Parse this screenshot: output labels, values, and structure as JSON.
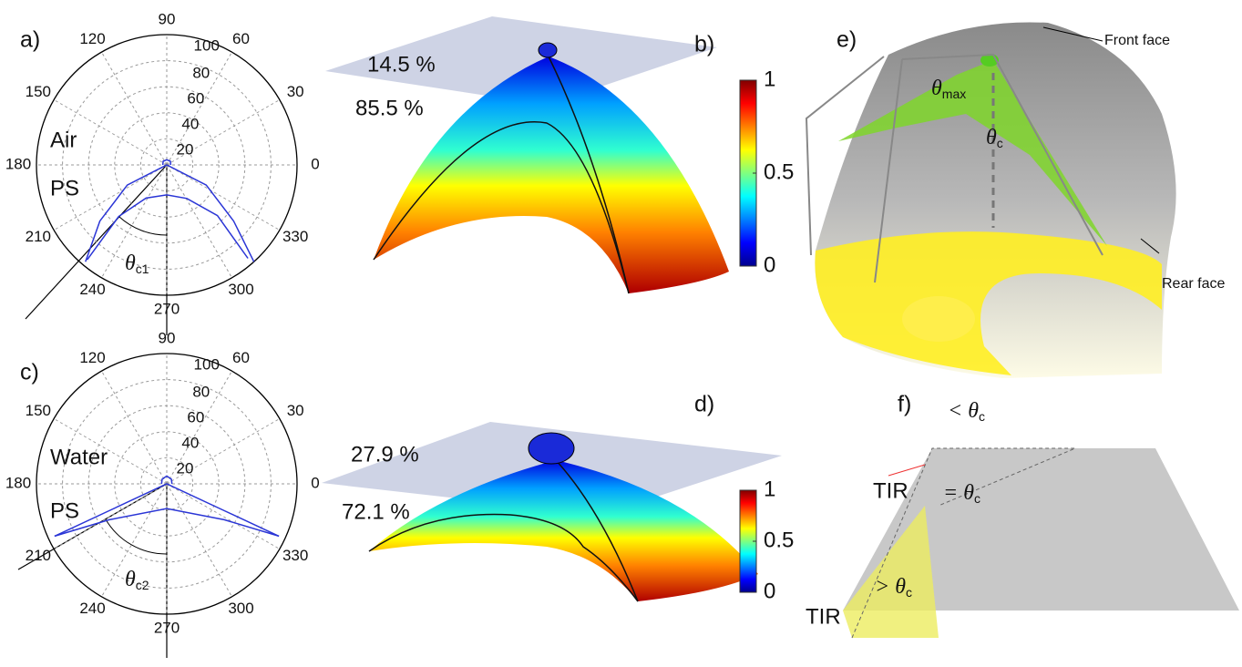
{
  "chart_data": [
    {
      "type": "polar",
      "label": "a)",
      "annotations": [
        "Air",
        "PS"
      ],
      "theta_label": {
        "main": "θ",
        "sub": "c1"
      },
      "rlim": [
        0,
        100
      ],
      "rticks": [
        20,
        40,
        60,
        80,
        100
      ],
      "thetaticks": [
        0,
        30,
        60,
        90,
        120,
        150,
        180,
        210,
        240,
        270,
        300,
        330
      ],
      "grid": true,
      "series": [
        {
          "color": "#2a35d6",
          "theta": [
            230,
            220,
            207,
            270,
            333,
            320,
            312
          ],
          "r": [
            97,
            67,
            34,
            0,
            34,
            67,
            100
          ]
        },
        {
          "color": "#2a35d6",
          "theta": [
            230,
            227,
            238,
            270,
            301,
            315,
            311
          ],
          "r": [
            95,
            54,
            30,
            23,
            30,
            55,
            95
          ]
        },
        {
          "color": "#2a35d6",
          "theta": [
            0,
            45,
            90,
            135,
            180
          ],
          "r": [
            3,
            4,
            4,
            4,
            3
          ]
        }
      ]
    },
    {
      "type": "surface",
      "label": "b)",
      "annotations": [
        "14.5 %",
        "85.5 %"
      ],
      "colorbar_lim": [
        0,
        1
      ],
      "colorbar_ticks": [
        0,
        0.5,
        1
      ]
    },
    {
      "type": "polar",
      "label": "c)",
      "annotations": [
        "Water",
        "PS"
      ],
      "theta_label": {
        "main": "θ",
        "sub": "c2"
      },
      "rlim": [
        0,
        100
      ],
      "rticks": [
        20,
        40,
        60,
        80,
        100
      ],
      "thetaticks": [
        0,
        30,
        60,
        90,
        120,
        150,
        180,
        210,
        240,
        270,
        300,
        330
      ],
      "grid": true,
      "series": [
        {
          "color": "#2a35d6",
          "theta": [
            205,
            205,
            270,
            335,
            335
          ],
          "r": [
            95,
            48,
            0,
            48,
            95
          ]
        },
        {
          "color": "#2a35d6",
          "theta": [
            205,
            212,
            270,
            328,
            335
          ],
          "r": [
            95,
            52,
            19,
            52,
            95
          ]
        },
        {
          "color": "#2a35d6",
          "theta": [
            0,
            45,
            90,
            135,
            180
          ],
          "r": [
            4,
            5,
            6,
            5,
            4
          ]
        }
      ]
    },
    {
      "type": "surface",
      "label": "d)",
      "annotations": [
        "27.9 %",
        "72.1 %"
      ],
      "colorbar_lim": [
        0,
        1
      ],
      "colorbar_ticks": [
        0,
        0.5,
        1
      ]
    }
  ],
  "diagrams": [
    {
      "label": "e)",
      "texts": [
        "Front face",
        "Rear face"
      ],
      "theta_labels": [
        {
          "main": "θ",
          "sub": "max"
        },
        {
          "main": "θ",
          "sub": "c"
        }
      ]
    },
    {
      "label": "f)",
      "texts": [
        "TIR",
        "TIR"
      ],
      "theta_labels": [
        {
          "main": "< θ",
          "sub": "c"
        },
        {
          "main": "= θ",
          "sub": "c"
        },
        {
          "main": "> θ",
          "sub": "c"
        }
      ]
    }
  ]
}
